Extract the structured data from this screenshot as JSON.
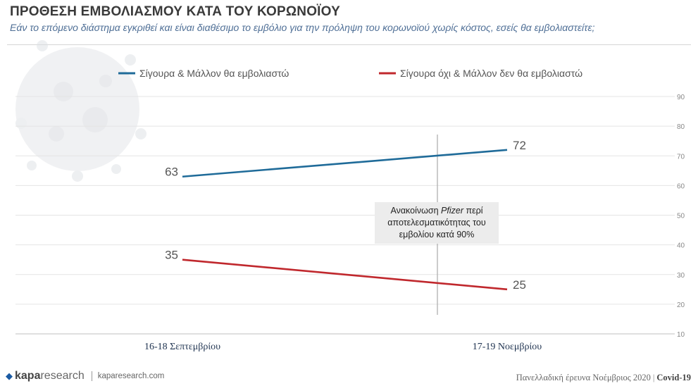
{
  "header": {
    "title": "ΠΡΟΘΕΣΗ ΕΜΒΟΛΙΑΣΜΟΥ ΚΑΤΑ ΤΟΥ ΚΟΡΩΝΟΪΟΥ",
    "subtitle": "Εάν το επόμενο διάστημα εγκριθεί και είναι διαθέσιμο το εμβόλιο για την πρόληψη του κορωνοϊού χωρίς κόστος, εσείς θα εμβολιαστείτε;"
  },
  "chart_data": {
    "type": "line",
    "categories": [
      "16-18 Σεπτεμβρίου",
      "17-19 Νοεμβρίου"
    ],
    "series": [
      {
        "name": "Σίγουρα & Μάλλον θα εμβολιαστώ",
        "values": [
          63,
          72
        ],
        "color": "#1f6b99"
      },
      {
        "name": "Σίγουρα όχι & Μάλλον δεν θα εμβολιαστώ",
        "values": [
          35,
          25
        ],
        "color": "#c0282d"
      }
    ],
    "ylim": [
      10,
      90
    ],
    "yticks": [
      10,
      20,
      30,
      40,
      50,
      60,
      70,
      80,
      90
    ],
    "grid": true,
    "legend_position": "top",
    "annotation": {
      "before": "Ανακοίνωση ",
      "emphasis": "Pfizer",
      "after": " περί αποτελεσματικότητας του εμβολίου κατά 90%"
    }
  },
  "footer": {
    "brand_bold": "kapa",
    "brand_light": "research",
    "url": "kaparesearch.com",
    "survey": "Πανελλαδική έρευνα Νοέμβριος 2020",
    "tag": "Covid-19"
  }
}
